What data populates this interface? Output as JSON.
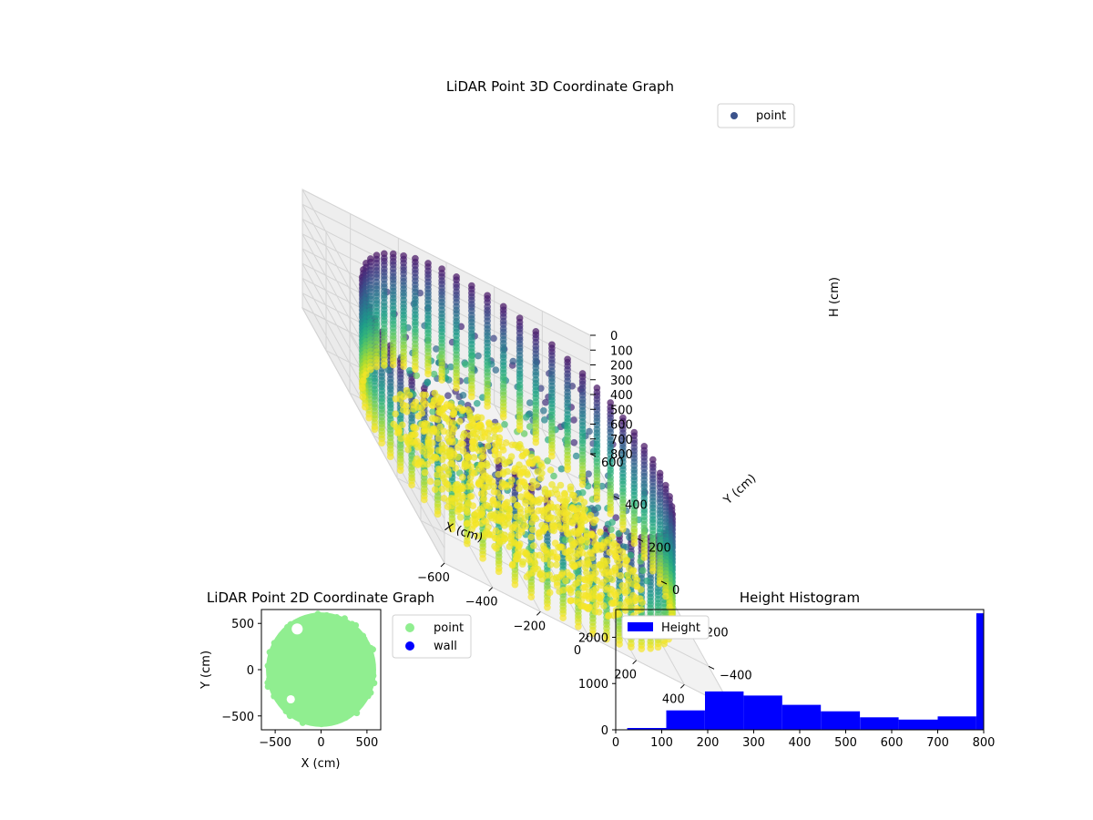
{
  "chart_data": [
    {
      "type": "scatter",
      "title": "LiDAR Point 3D Coordinate Graph",
      "xlabel": "X (cm)",
      "ylabel": "Y (cm)",
      "zlabel": "H (cm)",
      "xlim": [
        -600,
        600
      ],
      "ylim": [
        -600,
        600
      ],
      "zlim": [
        800,
        0
      ],
      "x_ticks": [
        "−600",
        "−400",
        "−200",
        "0",
        "200",
        "400",
        "600"
      ],
      "y_ticks": [
        "−600",
        "−400",
        "−200",
        "0",
        "200",
        "400",
        "600"
      ],
      "z_ticks": [
        "0",
        "100",
        "200",
        "300",
        "400",
        "500",
        "600",
        "700",
        "800"
      ],
      "grid": true,
      "colormap": "viridis",
      "legend": {
        "placement": "top-right",
        "entries": [
          {
            "label": "point",
            "color": "#3b528b"
          }
        ]
      },
      "wall_radius": 580,
      "wall_height_range": [
        0,
        800
      ]
    },
    {
      "type": "scatter",
      "title": "LiDAR Point 2D Coordinate Graph",
      "xlabel": "X (cm)",
      "ylabel": "Y (cm)",
      "xlim": [
        -650,
        650
      ],
      "ylim": [
        -650,
        650
      ],
      "x_ticks": [
        "−500",
        "0",
        "500"
      ],
      "y_ticks": [
        "−500",
        "0",
        "500"
      ],
      "legend": {
        "placement": "outside-right",
        "entries": [
          {
            "label": "point",
            "color": "#90ee90"
          },
          {
            "label": "wall",
            "color": "#0000ff"
          }
        ]
      },
      "point_radius": 600
    },
    {
      "type": "bar",
      "title": "Height Histogram",
      "xlabel": "",
      "ylabel": "",
      "xlim": [
        0,
        800
      ],
      "ylim": [
        0,
        2600
      ],
      "x_ticks": [
        "0",
        "100",
        "200",
        "300",
        "400",
        "500",
        "600",
        "700",
        "800"
      ],
      "y_ticks": [
        "0",
        "1000",
        "2000"
      ],
      "bin_edges": [
        25,
        110,
        194,
        278,
        362,
        446,
        531,
        615,
        700,
        784,
        800
      ],
      "counts": [
        40,
        420,
        830,
        740,
        540,
        400,
        270,
        220,
        290,
        2520
      ],
      "color": "#0000ff",
      "legend": {
        "placement": "top-left",
        "entries": [
          {
            "label": "Height",
            "color": "#0000ff"
          }
        ]
      }
    }
  ]
}
